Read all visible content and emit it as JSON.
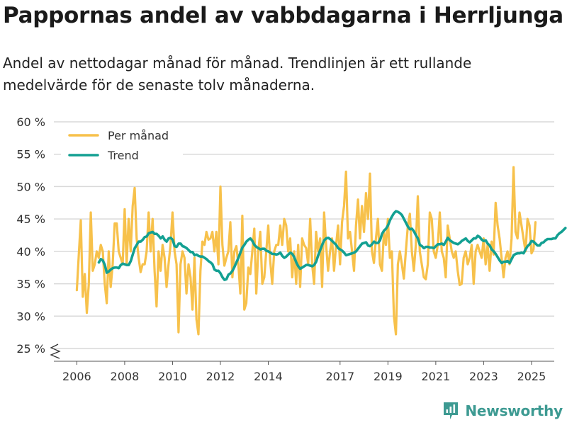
{
  "title": "Pappornas andel av vabbdagarna i Herrljunga",
  "subtitle": "Andel av nettodagar månad för månad. Trendlinjen är ett rullande medelvärde för de senaste tolv månaderna.",
  "brand": {
    "name": "Newsworthy",
    "icon": "bar-chart-logo-icon"
  },
  "colors": {
    "monthly": "#f7c14b",
    "trend": "#13a092",
    "grid": "#d9d9d9",
    "text": "#333333",
    "brand": "#3d9a92"
  },
  "chart_data": {
    "type": "line",
    "x_unit": "year",
    "xlim": [
      2005.1,
      2025.95
    ],
    "ylim": [
      24,
      62
    ],
    "y_ticks": [
      25,
      30,
      35,
      40,
      45,
      50,
      55,
      60
    ],
    "y_tick_labels": [
      "25 %",
      "30 %",
      "35 %",
      "40 %",
      "45 %",
      "50 %",
      "55 %",
      "60 %"
    ],
    "x_ticks": [
      2006,
      2008,
      2010,
      2012,
      2014,
      2017,
      2019,
      2021,
      2023,
      2025
    ],
    "x_tick_labels": [
      "2006",
      "2008",
      "2010",
      "2012",
      "2014",
      "2017",
      "2019",
      "2021",
      "2023",
      "2025"
    ],
    "axis_break": true,
    "grid": true,
    "legend": {
      "position": "top-left",
      "entries": [
        "Per månad",
        "Trend"
      ]
    },
    "series": [
      {
        "name": "Per månad",
        "x_start": 2006.0,
        "step": 0.08333,
        "values": [
          34,
          39.5,
          44.8,
          33,
          36.5,
          30.5,
          35,
          46,
          37,
          38,
          40,
          39,
          41,
          40,
          35,
          32,
          40,
          34.5,
          38,
          44.3,
          44.3,
          40,
          39,
          38,
          46.5,
          38,
          45,
          40,
          47,
          49.8,
          42,
          39,
          36.8,
          38,
          38,
          40,
          46,
          40,
          45,
          37,
          31.5,
          40,
          37,
          41,
          39,
          34.5,
          38,
          41,
          46,
          40,
          38,
          27.5,
          38,
          40,
          39,
          33.5,
          38,
          36,
          31,
          39,
          29.5,
          27.2,
          37,
          41.5,
          41,
          43,
          41.8,
          42,
          43,
          40,
          43,
          38,
          50,
          41,
          37.8,
          39,
          40,
          44.5,
          36,
          40,
          40.8,
          38,
          33.5,
          45.5,
          31,
          32,
          37.5,
          36.5,
          40,
          43.5,
          33.5,
          40,
          43,
          35,
          36,
          40,
          44,
          38.5,
          35,
          40,
          41,
          41,
          44,
          41,
          45,
          44,
          40,
          42,
          36,
          40,
          35,
          41,
          34.5,
          42,
          41,
          40.5,
          38,
          45,
          38,
          35,
          43,
          40,
          42,
          34.5,
          46,
          41,
          37,
          40,
          42,
          37,
          41,
          44,
          38,
          44.5,
          47,
          52.3,
          42,
          43,
          40,
          37,
          44,
          48,
          42,
          47,
          43,
          49,
          45,
          52,
          40,
          38.2,
          42,
          45,
          38,
          37,
          43,
          41,
          45,
          39,
          40,
          30,
          27.2,
          38,
          40,
          38,
          35.8,
          40,
          44,
          45.8,
          40,
          37,
          41,
          48.5,
          40,
          38,
          36,
          35.7,
          38,
          46,
          45,
          40,
          39,
          41,
          46,
          40,
          39,
          36,
          44,
          42,
          40,
          39,
          40,
          37,
          34.8,
          35,
          39,
          40,
          38,
          39,
          41,
          35,
          40,
          41,
          40,
          39,
          42,
          38,
          41,
          37,
          41.5,
          39.5,
          47.5,
          44,
          42,
          39,
          36,
          39,
          40,
          38,
          42,
          53,
          43,
          42,
          46,
          44,
          42,
          40,
          45,
          44,
          39.7,
          40.3,
          44.5
        ]
      },
      {
        "name": "Trend",
        "x_start": 2006.92,
        "step": 0.08333,
        "values": [
          38.3,
          38.8,
          38.6,
          37.9,
          36.7,
          36.9,
          37.2,
          37.4,
          37.5,
          37.5,
          37.4,
          37.9,
          38.1,
          38.0,
          37.9,
          37.9,
          38.5,
          39.5,
          40.5,
          41.0,
          41.5,
          41.5,
          41.8,
          42.2,
          42.3,
          42.8,
          42.9,
          43.0,
          42.7,
          42.7,
          42.4,
          42.0,
          42.3,
          41.8,
          41.5,
          42.0,
          42.1,
          41.8,
          40.8,
          40.7,
          41.2,
          41.2,
          40.8,
          40.7,
          40.5,
          40.2,
          39.9,
          39.9,
          39.4,
          39.5,
          39.3,
          39.2,
          39.2,
          39.0,
          38.8,
          38.5,
          38.3,
          38.0,
          37.2,
          37.0,
          37.0,
          36.6,
          36.0,
          35.6,
          35.7,
          36.4,
          36.6,
          37.0,
          37.6,
          38.3,
          39.0,
          39.8,
          40.6,
          41.0,
          41.5,
          41.8,
          42.0,
          41.6,
          41.0,
          40.7,
          40.5,
          40.3,
          40.4,
          40.4,
          40.1,
          40.0,
          39.8,
          39.6,
          39.6,
          39.5,
          39.6,
          39.8,
          39.3,
          39.0,
          39.2,
          39.5,
          39.8,
          39.6,
          39.1,
          38.3,
          37.7,
          37.3,
          37.5,
          37.7,
          37.9,
          37.9,
          37.8,
          37.7,
          37.9,
          38.4,
          39.4,
          40.2,
          41.0,
          41.7,
          42.0,
          42.1,
          41.9,
          41.6,
          41.3,
          41.0,
          40.5,
          40.3,
          40.1,
          39.8,
          39.4,
          39.5,
          39.6,
          39.7,
          39.8,
          40.0,
          40.4,
          40.8,
          41.2,
          41.3,
          41.4,
          40.9,
          40.8,
          41.1,
          41.5,
          41.3,
          41.3,
          41.7,
          42.7,
          43.2,
          43.5,
          44.0,
          44.8,
          45.4,
          45.9,
          46.2,
          46.1,
          45.9,
          45.6,
          45.0,
          44.4,
          43.8,
          43.4,
          43.5,
          43.1,
          42.5,
          42.0,
          41.0,
          40.8,
          40.5,
          40.7,
          40.7,
          40.6,
          40.6,
          40.5,
          40.8,
          41.1,
          41.1,
          41.2,
          41.0,
          41.5,
          42.1,
          41.7,
          41.5,
          41.3,
          41.2,
          41.1,
          41.3,
          41.6,
          41.8,
          42.0,
          41.6,
          41.4,
          41.7,
          42.0,
          42.0,
          42.4,
          42.2,
          41.8,
          41.6,
          41.7,
          41.2,
          40.9,
          40.3,
          40.0,
          39.6,
          39.1,
          38.6,
          38.2,
          38.4,
          38.4,
          38.5,
          38.2,
          38.8,
          39.4,
          39.6,
          39.7,
          39.7,
          39.8,
          39.7,
          40.3,
          40.8,
          41.1,
          41.6,
          41.5,
          41.2,
          40.9,
          40.9,
          41.3,
          41.4,
          41.7,
          41.9,
          41.9,
          41.9,
          42.0,
          42.0,
          42.5,
          42.8,
          43.0,
          43.3,
          43.6
        ]
      }
    ]
  }
}
